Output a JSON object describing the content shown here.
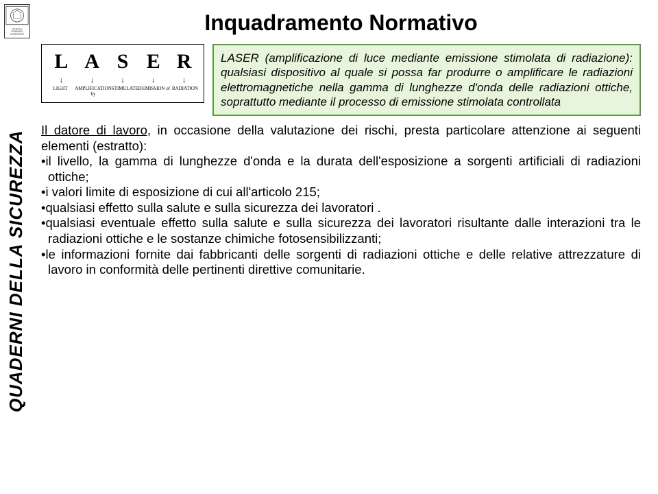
{
  "sidebar": {
    "logo_label": "Scuola Normale Superiore",
    "vertical_text": "QUADERNI DELLA SICUREZZA"
  },
  "title": "Inquadramento Normativo",
  "laser_diagram": {
    "letters": [
      "L",
      "A",
      "S",
      "E",
      "R"
    ],
    "words": [
      "LIGHT",
      "AMPLIFICATION by",
      "STIMULATED",
      "EMISSION of",
      "RADIATION"
    ]
  },
  "definition_box": {
    "text": "LASER (amplificazione di luce mediante emissione stimolata di radiazione): qualsiasi dispositivo al quale si possa far produrre o amplificare le radiazioni elettromagnetiche nella gamma di lunghezze d'onda delle radiazioni ottiche, soprattutto mediante il processo di emissione stimolata controllata"
  },
  "main": {
    "lead_underlined": "Il datore di lavoro,",
    "lead_rest": " in occasione della valutazione dei rischi, presta particolare attenzione ai seguenti elementi (estratto):",
    "bullets": [
      "il livello, la gamma di lunghezze d'onda e la durata dell'esposizione a sorgenti artificiali di radiazioni ottiche;",
      "i valori limite di esposizione di cui all'articolo 215;",
      "qualsiasi effetto sulla salute e sulla sicurezza dei lavoratori .",
      "qualsiasi eventuale effetto sulla salute e sulla sicurezza dei lavoratori risultante dalle interazioni tra le radiazioni ottiche e le sostanze chimiche fotosensibilizzanti;",
      "le informazioni fornite dai fabbricanti delle sorgenti di radiazioni ottiche e delle relative attrezzature di lavoro in conformità delle pertinenti direttive comunitarie."
    ]
  },
  "colors": {
    "def_border": "#5b9b3e",
    "def_bg": "#e8f5dd",
    "text": "#000000",
    "bg": "#ffffff"
  },
  "typography": {
    "title_fontsize": 32,
    "body_fontsize": 18.5,
    "def_fontsize": 17,
    "sidebar_fontsize": 26
  }
}
